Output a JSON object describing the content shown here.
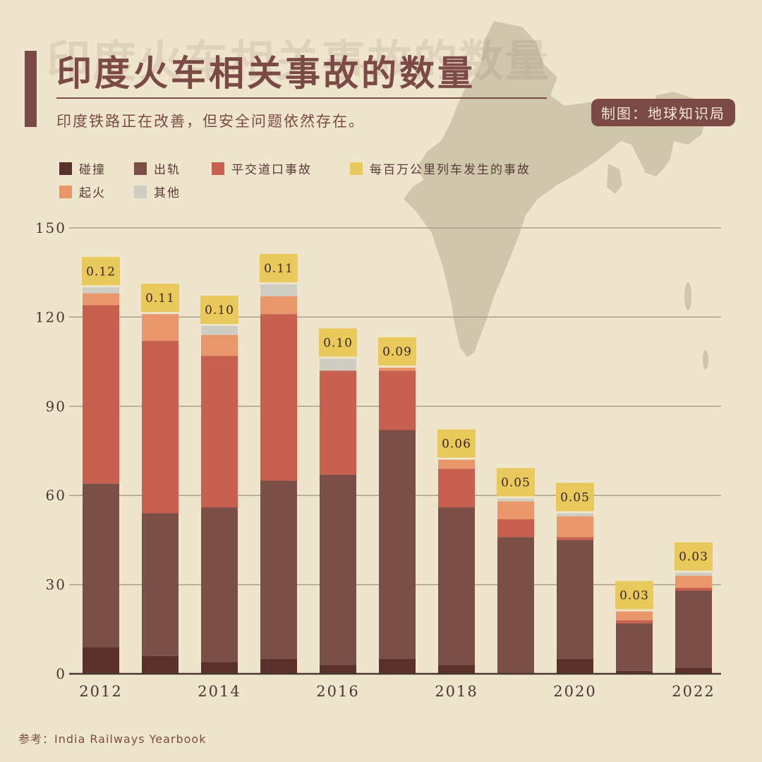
{
  "header": {
    "title": "印度火车相关事故的数量",
    "subtitle": "印度铁路正在改善，但安全问题依然存在。",
    "credit": "制图：地球知识局"
  },
  "footer": {
    "source_prefix": "参考：",
    "source": "India Railways Yearbook"
  },
  "chart_data": {
    "type": "bar",
    "stacked": true,
    "x": [
      2012,
      2013,
      2014,
      2015,
      2016,
      2017,
      2018,
      2019,
      2020,
      2021,
      2022
    ],
    "x_tick_labels": [
      "2012",
      "2014",
      "2016",
      "2018",
      "2020",
      "2022"
    ],
    "x_tick_values": [
      2012,
      2014,
      2016,
      2018,
      2020,
      2022
    ],
    "y_ticks": [
      0,
      30,
      60,
      90,
      120,
      150
    ],
    "ylim": [
      0,
      150
    ],
    "grid": true,
    "legend_position": "top-left",
    "series": [
      {
        "name": "碰撞",
        "color": "#5b302c",
        "values": [
          9,
          6,
          4,
          5,
          3,
          5,
          3,
          0,
          5,
          1,
          2
        ]
      },
      {
        "name": "出轨",
        "color": "#7c4e48",
        "values": [
          55,
          48,
          52,
          60,
          64,
          77,
          53,
          46,
          40,
          16,
          26
        ]
      },
      {
        "name": "平交道口事故",
        "color": "#c86050",
        "values": [
          60,
          58,
          51,
          56,
          35,
          20,
          13,
          6,
          1,
          1,
          1
        ]
      },
      {
        "name": "起火",
        "color": "#e9966a",
        "values": [
          4,
          9,
          7,
          6,
          0,
          1,
          3,
          6,
          7,
          3,
          4
        ]
      },
      {
        "name": "其他",
        "color": "#cfccc2",
        "values": [
          2,
          0,
          3,
          4,
          4,
          0,
          0,
          1,
          1,
          0,
          1
        ]
      }
    ],
    "rate_series": {
      "name": "每百万公里列车发生的事故",
      "color": "#e8c95a",
      "values": [
        "0.12",
        "0.11",
        "0.10",
        "0.11",
        "0.10",
        "0.09",
        "0.06",
        "0.05",
        "0.05",
        "0.03",
        "0.03"
      ]
    }
  }
}
